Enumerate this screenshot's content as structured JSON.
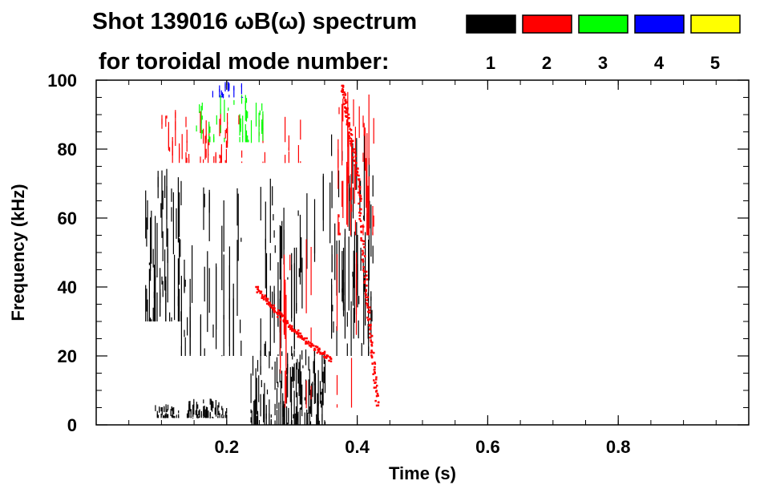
{
  "title": {
    "line1": "Shot 139016 ωB(ω) spectrum",
    "line2": "for toroidal mode number:"
  },
  "chart_data": {
    "type": "heatmap",
    "xlabel": "Time (s)",
    "ylabel": "Frequency (kHz)",
    "xlim": [
      0,
      1.0
    ],
    "ylim": [
      0,
      100
    ],
    "x_ticks": [
      {
        "value": 0.2,
        "label": "0.2"
      },
      {
        "value": 0.4,
        "label": "0.4"
      },
      {
        "value": 0.6,
        "label": "0.6"
      },
      {
        "value": 0.8,
        "label": "0.8"
      }
    ],
    "y_ticks": [
      {
        "value": 0,
        "label": "0"
      },
      {
        "value": 20,
        "label": "20"
      },
      {
        "value": 40,
        "label": "40"
      },
      {
        "value": 60,
        "label": "60"
      },
      {
        "value": 80,
        "label": "80"
      },
      {
        "value": 100,
        "label": "100"
      }
    ],
    "legend": {
      "placement": "top-right",
      "entries": [
        {
          "label": "1",
          "color": "#000000"
        },
        {
          "label": "2",
          "color": "#ff0000"
        },
        {
          "label": "3",
          "color": "#00ff00"
        },
        {
          "label": "4",
          "color": "#0000ff"
        },
        {
          "label": "5",
          "color": "#ffff00"
        }
      ]
    },
    "regions": [
      {
        "mode": "1",
        "t": [
          0.075,
          0.13
        ],
        "f": [
          30,
          75
        ],
        "density": 0.75
      },
      {
        "mode": "1",
        "t": [
          0.13,
          0.235
        ],
        "f": [
          20,
          72
        ],
        "density": 0.35
      },
      {
        "mode": "1",
        "t": [
          0.235,
          0.35
        ],
        "f": [
          0,
          22
        ],
        "density": 0.85
      },
      {
        "mode": "1",
        "t": [
          0.25,
          0.42
        ],
        "f": [
          20,
          75
        ],
        "density": 0.35
      },
      {
        "mode": "1",
        "t": [
          0.36,
          0.425
        ],
        "f": [
          25,
          85
        ],
        "density": 0.45
      },
      {
        "mode": "1",
        "t": [
          0.09,
          0.2
        ],
        "f": [
          2,
          6
        ],
        "density": 0.5
      },
      {
        "mode": "1",
        "t": [
          0.14,
          0.19
        ],
        "f": [
          2,
          8
        ],
        "density": 0.6
      },
      {
        "mode": "2",
        "t": [
          0.1,
          0.32
        ],
        "f": [
          76,
          92
        ],
        "density": 0.35
      },
      {
        "mode": "2",
        "t": [
          0.37,
          0.425
        ],
        "f": [
          55,
          100
        ],
        "density": 0.45
      },
      {
        "mode": "2",
        "t": [
          0.28,
          0.41
        ],
        "f": [
          5,
          55
        ],
        "density": 0.05
      },
      {
        "mode": "3",
        "t": [
          0.15,
          0.26
        ],
        "f": [
          82,
          96
        ],
        "density": 0.35
      },
      {
        "mode": "4",
        "t": [
          0.175,
          0.225
        ],
        "f": [
          95,
          100
        ],
        "density": 0.4
      }
    ],
    "curves": [
      {
        "mode": "2",
        "points": [
          [
            0.245,
            40
          ],
          [
            0.27,
            34
          ],
          [
            0.3,
            28
          ],
          [
            0.33,
            23
          ],
          [
            0.36,
            19
          ]
        ]
      },
      {
        "mode": "2",
        "points": [
          [
            0.375,
            99
          ],
          [
            0.385,
            88
          ],
          [
            0.4,
            72
          ],
          [
            0.41,
            45
          ],
          [
            0.42,
            25
          ],
          [
            0.43,
            5
          ]
        ]
      }
    ]
  }
}
